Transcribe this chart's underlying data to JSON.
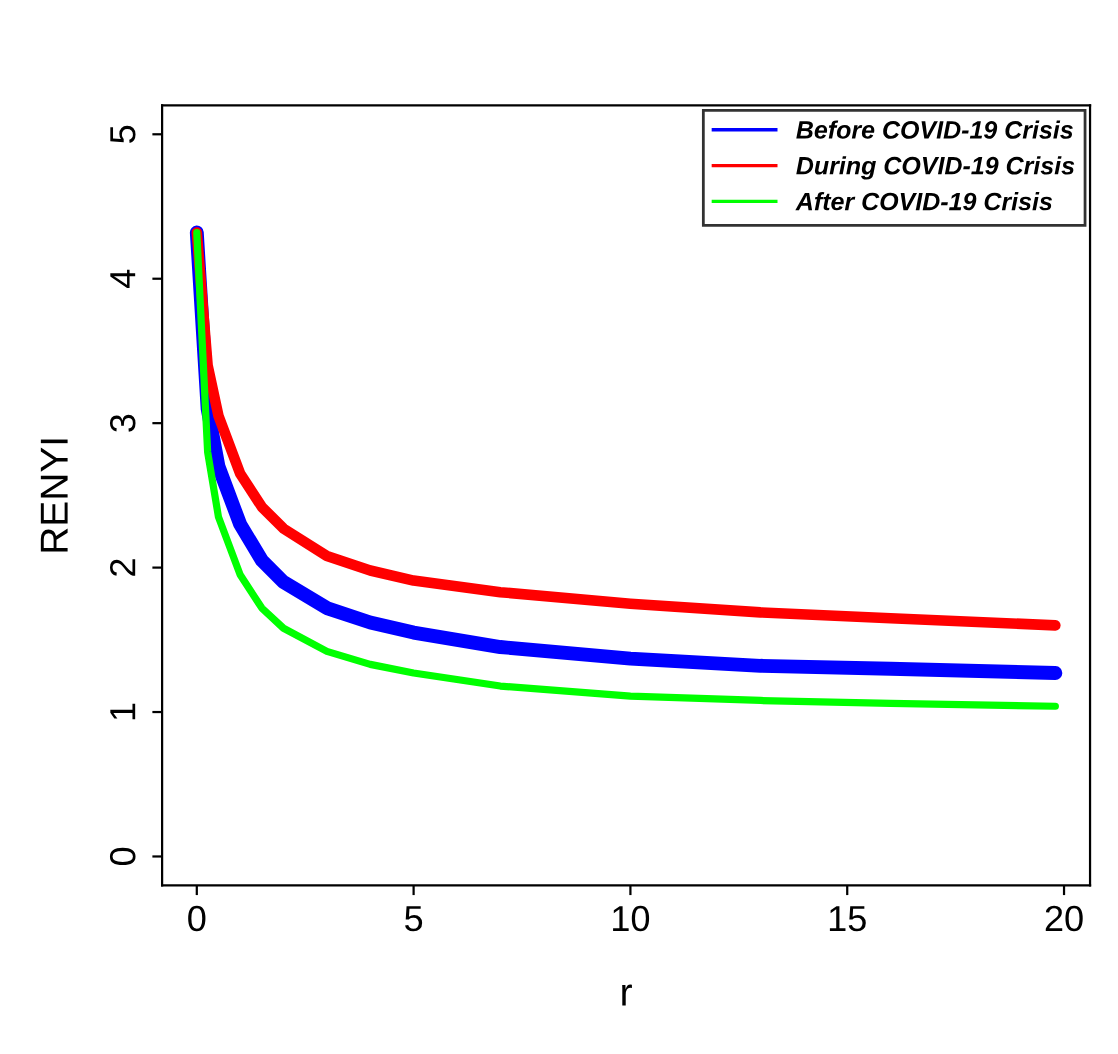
{
  "chart_data": {
    "type": "line",
    "xlabel": "r",
    "ylabel": "RENYI",
    "xlim": [
      -0.8,
      20.6
    ],
    "ylim": [
      -0.2,
      5.2
    ],
    "xticks": [
      0,
      5,
      10,
      15,
      20
    ],
    "yticks": [
      0,
      1,
      2,
      3,
      4,
      5
    ],
    "grid": false,
    "legend": "top right",
    "marker": "none",
    "line_style": "solid",
    "series": [
      {
        "name": "Before COVID-19 Crisis",
        "color": "#0000ff",
        "x": [
          0,
          0.25,
          0.5,
          1,
          1.5,
          2,
          3,
          4,
          5,
          7,
          10,
          13,
          16,
          19.8
        ],
        "values": [
          4.32,
          3.1,
          2.7,
          2.3,
          2.05,
          1.9,
          1.72,
          1.62,
          1.55,
          1.45,
          1.37,
          1.32,
          1.3,
          1.27
        ]
      },
      {
        "name": "During COVID-19 Crisis",
        "color": "#ff0000",
        "x": [
          0,
          0.25,
          0.5,
          1,
          1.5,
          2,
          3,
          4,
          5,
          7,
          10,
          13,
          16,
          19.8
        ],
        "values": [
          4.32,
          3.4,
          3.05,
          2.65,
          2.42,
          2.27,
          2.08,
          1.98,
          1.91,
          1.83,
          1.75,
          1.69,
          1.65,
          1.6
        ]
      },
      {
        "name": "After COVID-19 Crisis",
        "color": "#00ff00",
        "x": [
          0,
          0.25,
          0.5,
          1,
          1.5,
          2,
          3,
          4,
          5,
          7,
          10,
          13,
          16,
          19.8
        ],
        "values": [
          4.32,
          2.8,
          2.35,
          1.95,
          1.72,
          1.58,
          1.42,
          1.33,
          1.27,
          1.18,
          1.11,
          1.08,
          1.06,
          1.04
        ]
      }
    ]
  }
}
